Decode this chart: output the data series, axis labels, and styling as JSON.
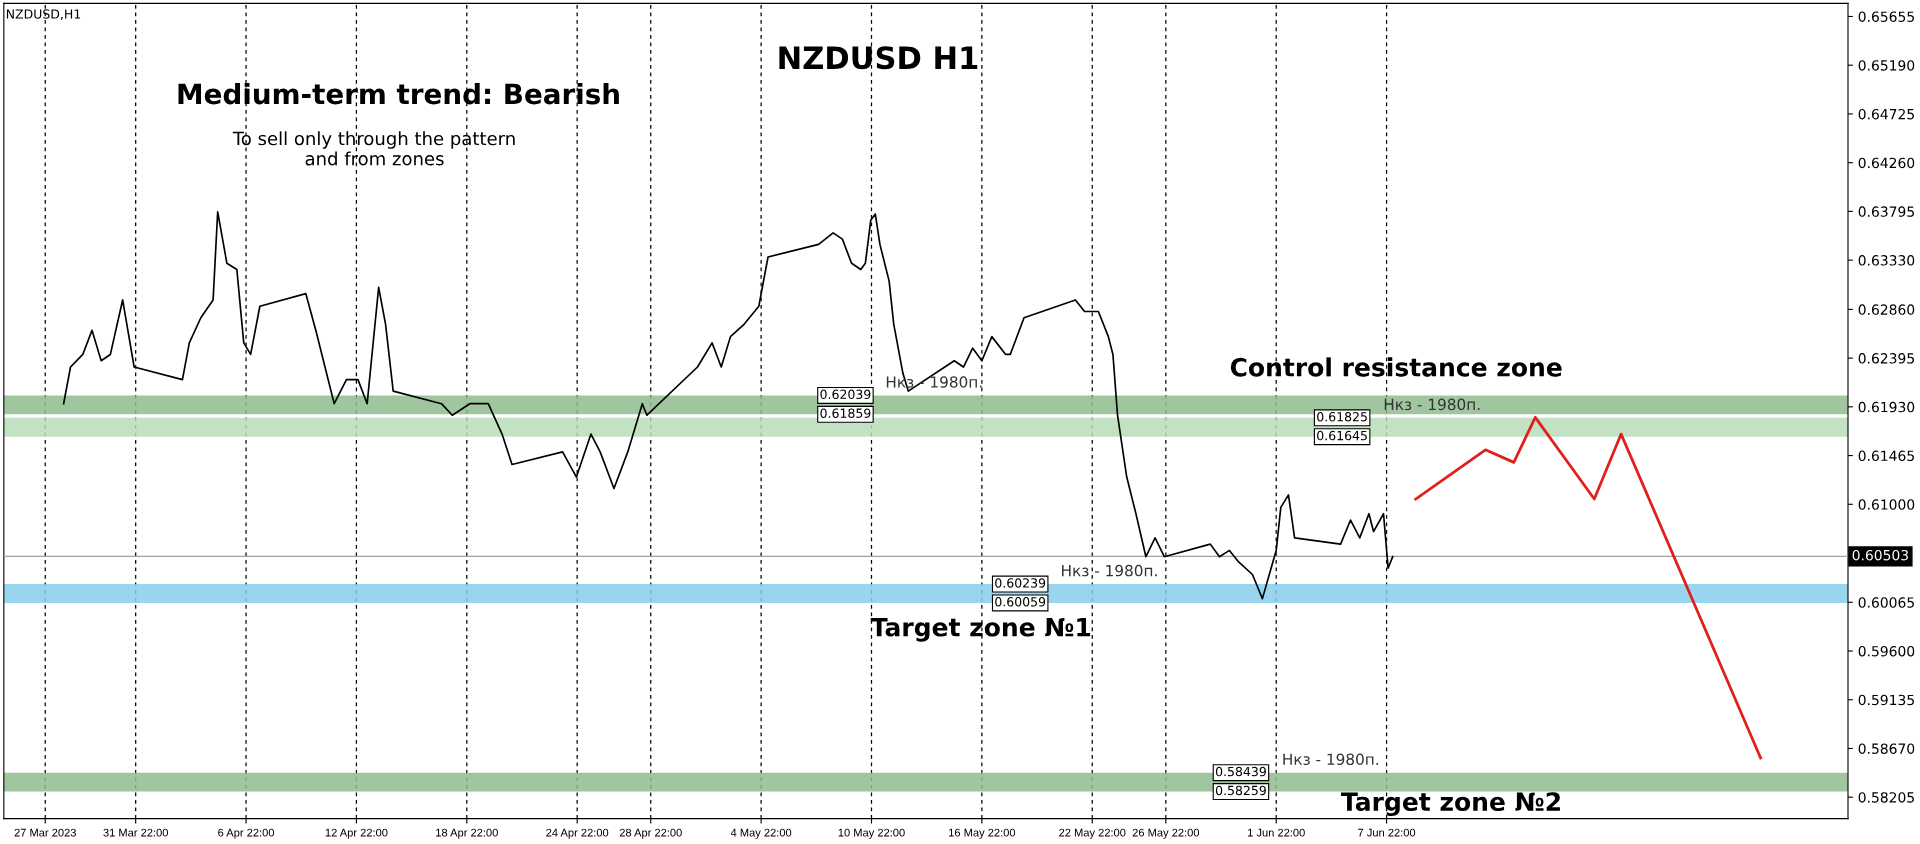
{
  "chart_data": {
    "type": "line",
    "title": "NZDUSD H1",
    "annotations": [
      "NZDUSD,H1",
      "Medium-term trend: Bearish",
      "To sell only through the pattern\nand from zones",
      "Control resistance zone",
      "Target zone №1",
      "Target zone №2",
      {
        "text": "0.62039",
        "x": "2023-05-09T12:00",
        "y": 0.62039
      },
      {
        "text": "0.61859",
        "x": "2023-05-09T12:00",
        "y": 0.61859
      },
      {
        "text": "0.60239",
        "x": "2023-05-19T00:00",
        "y": 0.60239
      },
      {
        "text": "0.60059",
        "x": "2023-05-19T00:00",
        "y": 0.60059
      },
      {
        "text": "0.58439",
        "x": "2023-05-31T00:00",
        "y": 0.58439
      },
      {
        "text": "0.58259",
        "x": "2023-05-31T00:00",
        "y": 0.58259
      },
      {
        "text": "0.61825",
        "x": "2023-06-05T12:00",
        "y": 0.61825
      },
      {
        "text": "0.61645",
        "x": "2023-06-05T12:00",
        "y": 0.61645
      }
    ],
    "series": [
      {
        "color": "#000000",
        "x": [
          "2023-03-28T00:00",
          "2023-03-28T09:00",
          "2023-03-29T01:00",
          "2023-03-29T13:00",
          "2023-03-30T01:00",
          "2023-03-30T13:00",
          "2023-03-31T05:00",
          "2023-03-31T20:00",
          "2023-04-03T11:00",
          "2023-04-03T20:00",
          "2023-04-04T11:00",
          "2023-04-05T03:00",
          "2023-04-05T09:00",
          "2023-04-05T21:00",
          "2023-04-06T10:00",
          "2023-04-06T19:00",
          "2023-04-07T04:00",
          "2023-04-07T16:00",
          "2023-04-10T04:00",
          "2023-04-10T17:00",
          "2023-04-11T17:00",
          "2023-04-12T09:00",
          "2023-04-13T00:00",
          "2023-04-13T12:00",
          "2023-04-14T03:00",
          "2023-04-14T12:00",
          "2023-04-14T22:00",
          "2023-04-17T13:00",
          "2023-04-18T03:00",
          "2023-04-19T02:00",
          "2023-04-20T02:00",
          "2023-04-20T20:00",
          "2023-04-21T09:00",
          "2023-04-24T03:00",
          "2023-04-24T21:00",
          "2023-04-25T16:00",
          "2023-04-26T04:00",
          "2023-04-26T22:00",
          "2023-04-27T16:00",
          "2023-04-28T11:00",
          "2023-04-28T17:00",
          "2023-05-01T11:00",
          "2023-05-02T06:00",
          "2023-05-02T18:00",
          "2023-05-03T06:00",
          "2023-05-04T00:00",
          "2023-05-04T19:00",
          "2023-05-05T07:00",
          "2023-05-08T01:00",
          "2023-05-08T20:00",
          "2023-05-09T08:00",
          "2023-05-09T20:00",
          "2023-05-10T08:00",
          "2023-05-10T14:00",
          "2023-05-10T21:00",
          "2023-05-11T03:00",
          "2023-05-11T09:00",
          "2023-05-11T21:00",
          "2023-05-12T03:00",
          "2023-05-12T15:00",
          "2023-05-12T22:00",
          "2023-05-15T10:00",
          "2023-05-15T22:00",
          "2023-05-16T10:00",
          "2023-05-16T22:00",
          "2023-05-17T11:00",
          "2023-05-18T05:00",
          "2023-05-18T11:00",
          "2023-05-19T05:00",
          "2023-05-22T00:00",
          "2023-05-22T12:00",
          "2023-05-23T06:00",
          "2023-05-23T19:00",
          "2023-05-24T01:00",
          "2023-05-24T07:00",
          "2023-05-24T19:00",
          "2023-05-25T07:00",
          "2023-05-25T20:00",
          "2023-05-26T08:00",
          "2023-05-26T20:00",
          "2023-05-29T08:00",
          "2023-05-29T20:00",
          "2023-05-30T09:00",
          "2023-05-30T21:00",
          "2023-05-31T15:00",
          "2023-06-01T04:00",
          "2023-06-01T13:00",
          "2023-06-01T22:00",
          "2023-06-02T04:00",
          "2023-06-02T14:00",
          "2023-06-02T22:00",
          "2023-06-05T10:00",
          "2023-06-05T23:00",
          "2023-06-06T11:00",
          "2023-06-06T23:00",
          "2023-06-07T05:00",
          "2023-06-07T18:00",
          "2023-06-08T00:00",
          "2023-06-08T06:00"
        ],
        "values": [
          0.6196,
          0.6231,
          0.6243,
          0.6266,
          0.6237,
          0.6243,
          0.6295,
          0.6231,
          0.6219,
          0.6254,
          0.6278,
          0.6295,
          0.6379,
          0.633,
          0.6324,
          0.6254,
          0.6243,
          0.6289,
          0.6301,
          0.6266,
          0.6196,
          0.6219,
          0.6219,
          0.6196,
          0.6307,
          0.6272,
          0.6208,
          0.6196,
          0.6185,
          0.6196,
          0.6196,
          0.6167,
          0.6138,
          0.615,
          0.6126,
          0.6167,
          0.615,
          0.6115,
          0.615,
          0.6196,
          0.6185,
          0.6231,
          0.6254,
          0.6231,
          0.626,
          0.6272,
          0.6289,
          0.6336,
          0.6348,
          0.6359,
          0.6353,
          0.633,
          0.6324,
          0.633,
          0.6371,
          0.6377,
          0.6348,
          0.6313,
          0.6272,
          0.6225,
          0.6208,
          0.6237,
          0.6231,
          0.6249,
          0.6237,
          0.626,
          0.6243,
          0.6243,
          0.6278,
          0.6295,
          0.6284,
          0.6284,
          0.626,
          0.6243,
          0.6185,
          0.6126,
          0.6091,
          0.605,
          0.6068,
          0.605,
          0.6062,
          0.605,
          0.6056,
          0.6045,
          0.6033,
          0.601,
          0.6033,
          0.6056,
          0.6097,
          0.6109,
          0.6068,
          0.6062,
          0.6085,
          0.6068,
          0.6091,
          0.6074,
          0.6091,
          0.6039,
          0.605
        ]
      },
      {
        "color": "#e0201a",
        "x": [
          "2023-06-09T12:00",
          "2023-06-13T07:00",
          "2023-06-14T20:00",
          "2023-06-16T00:00",
          "2023-06-19T05:00",
          "2023-06-20T16:00",
          "2023-06-28T06:00"
        ],
        "values": [
          0.6105,
          0.6152,
          0.614,
          0.6183,
          0.6105,
          0.6167,
          0.5858
        ]
      }
    ],
    "xlim": [
      "2023-03-24T18:00",
      "2023-07-03T00:00"
    ],
    "xticks": [
      {
        "value": "2023-03-27T00:00",
        "label": "27 Mar 2023"
      },
      {
        "value": "2023-03-31T22:00",
        "label": "31 Mar 22:00"
      },
      {
        "value": "2023-04-06T22:00",
        "label": "6 Apr 22:00"
      },
      {
        "value": "2023-04-12T22:00",
        "label": "12 Apr 22:00"
      },
      {
        "value": "2023-04-18T22:00",
        "label": "18 Apr 22:00"
      },
      {
        "value": "2023-04-24T22:00",
        "label": "24 Apr 22:00"
      },
      {
        "value": "2023-04-28T22:00",
        "label": "28 Apr 22:00"
      },
      {
        "value": "2023-05-04T22:00",
        "label": "4 May 22:00"
      },
      {
        "value": "2023-05-10T22:00",
        "label": "10 May 22:00"
      },
      {
        "value": "2023-05-16T22:00",
        "label": "16 May 22:00"
      },
      {
        "value": "2023-05-22T22:00",
        "label": "22 May 22:00"
      },
      {
        "value": "2023-05-26T22:00",
        "label": "26 May 22:00"
      },
      {
        "value": "2023-06-01T22:00",
        "label": "1 Jun 22:00"
      },
      {
        "value": "2023-06-07T22:00",
        "label": "7 Jun 22:00"
      }
    ],
    "ylim": [
      0.58,
      0.6578
    ],
    "yticks": [
      0.65655,
      {
        "value": 0.6519,
        "label": "0.65190"
      },
      0.64725,
      {
        "value": 0.6426,
        "label": "0.64260"
      },
      0.63795,
      {
        "value": 0.6333,
        "label": "0.63330"
      },
      {
        "value": 0.6286,
        "label": "0.62860"
      },
      0.62395,
      {
        "value": 0.6193,
        "label": "0.61930"
      },
      0.61465,
      {
        "value": 0.61,
        "label": "0.61000"
      },
      0.60065,
      {
        "value": 0.596,
        "label": "0.59600"
      },
      0.59135,
      {
        "value": 0.5867,
        "label": "0.58670"
      },
      0.58205
    ],
    "grid": "x",
    "ref_lines": [
      {
        "axis": "y",
        "value": 0.60503,
        "label": "0.60503",
        "color": "#a0a0a0"
      }
    ],
    "bands": [
      {
        "axis": "y",
        "from": 0.61859,
        "to": 0.62039,
        "label": "Нкз - 1980п.",
        "color": "#8fbc8f"
      },
      {
        "axis": "y",
        "from": 0.60059,
        "to": 0.60239,
        "label": "Нкз - 1980п.",
        "color": "#87ceeb"
      },
      {
        "axis": "y",
        "from": 0.58259,
        "to": 0.58439,
        "label": "Нкз - 1980п.",
        "color": "#8fbc8f"
      },
      {
        "axis": "y",
        "from": 0.61645,
        "to": 0.61825,
        "label": "Нкз - 1980п.",
        "color": "#b8dcb8"
      }
    ]
  }
}
